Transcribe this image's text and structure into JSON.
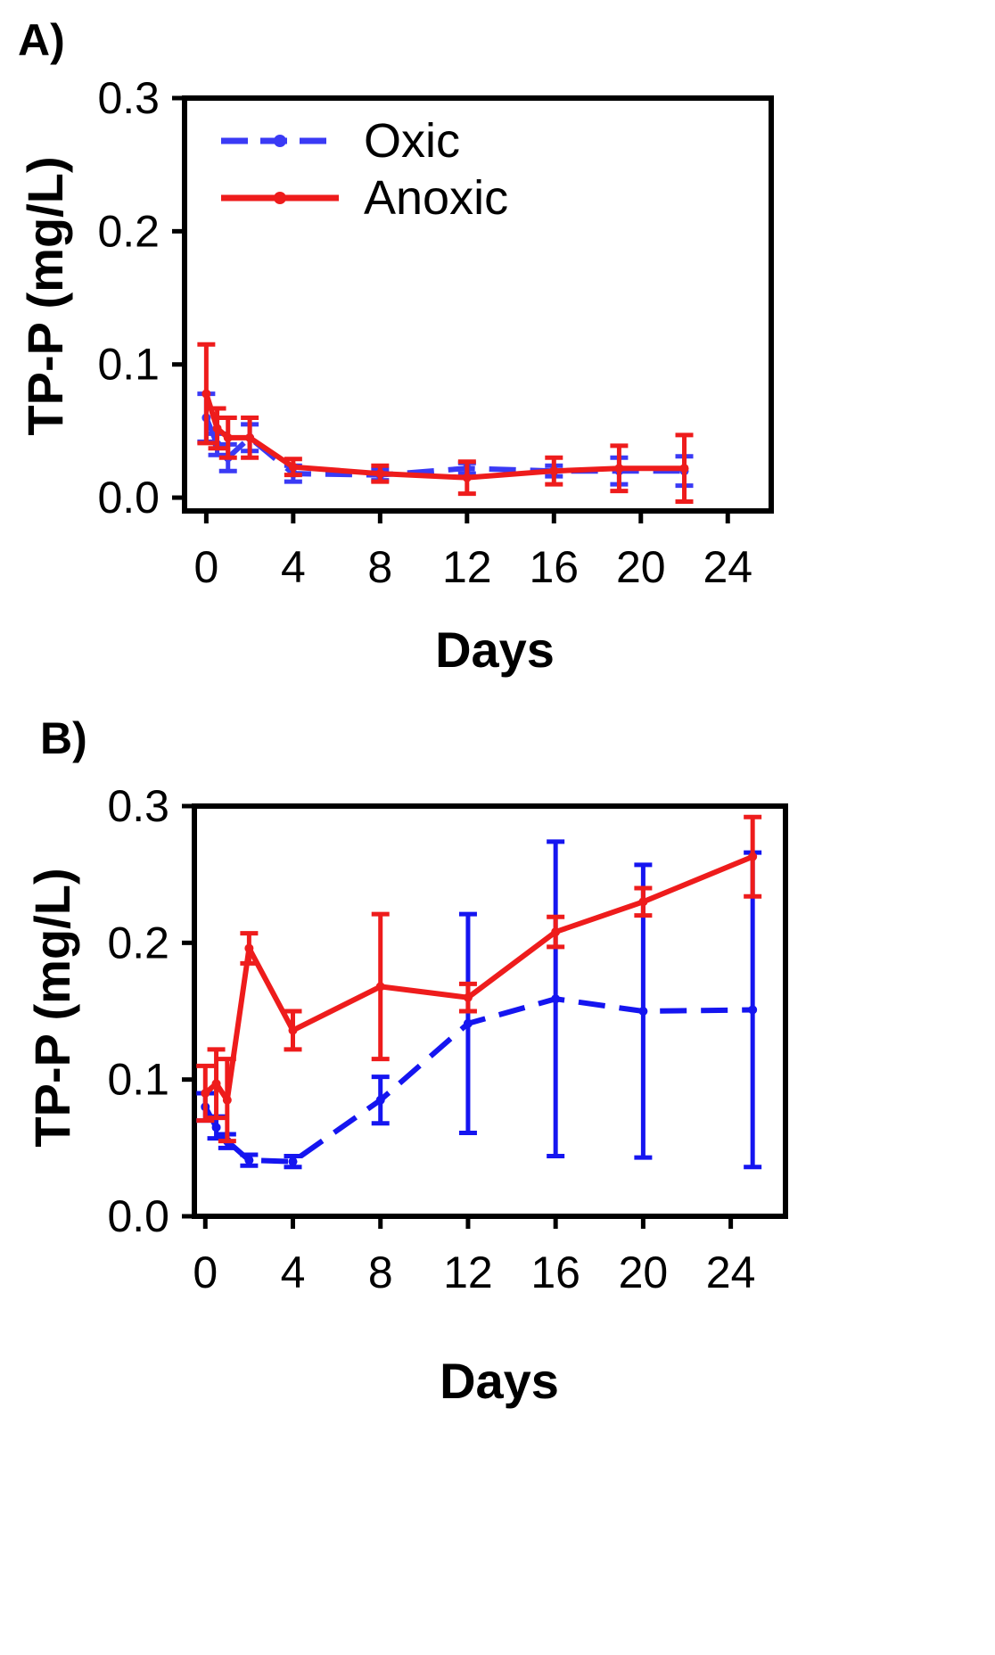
{
  "chart_data": [
    {
      "type": "line",
      "panel_label": "A)",
      "xlabel": "Days",
      "ylabel": "TP-P (mg/L)",
      "xlim": [
        -1,
        26
      ],
      "ylim": [
        -0.01,
        0.3
      ],
      "xticks": [
        0,
        4,
        8,
        12,
        16,
        20,
        24
      ],
      "xtick_labels": [
        "0",
        "4",
        "8",
        "12",
        "16",
        "20",
        "24"
      ],
      "yticks": [
        0.0,
        0.1,
        0.2,
        0.3
      ],
      "ytick_labels": [
        "0.0",
        "0.1",
        "0.2",
        "0.3"
      ],
      "legend": {
        "position": "top-left",
        "entries": [
          "Oxic",
          "Anoxic"
        ]
      },
      "series": [
        {
          "name": "Oxic",
          "color": "#3a3af5",
          "dash": "dashed",
          "x": [
            0,
            0.5,
            1,
            2,
            4,
            8,
            12,
            16,
            19,
            22
          ],
          "y": [
            0.06,
            0.04,
            0.03,
            0.045,
            0.018,
            0.017,
            0.022,
            0.02,
            0.02,
            0.02
          ],
          "err": [
            0.018,
            0.008,
            0.01,
            0.01,
            0.006,
            0.004,
            0.004,
            0.004,
            0.01,
            0.011
          ]
        },
        {
          "name": "Anoxic",
          "color": "#ee1c1c",
          "dash": "solid",
          "x": [
            0,
            0.5,
            1,
            2,
            4,
            8,
            12,
            16,
            19,
            22
          ],
          "y": [
            0.078,
            0.052,
            0.045,
            0.045,
            0.023,
            0.018,
            0.015,
            0.02,
            0.022,
            0.022
          ],
          "err": [
            0.037,
            0.015,
            0.015,
            0.015,
            0.006,
            0.006,
            0.012,
            0.01,
            0.017,
            0.025
          ]
        }
      ]
    },
    {
      "type": "line",
      "panel_label": "B)",
      "xlabel": "Days",
      "ylabel": "TP-P (mg/L)",
      "xlim": [
        -0.5,
        26.5
      ],
      "ylim": [
        0.0,
        0.3
      ],
      "xticks": [
        0,
        4,
        8,
        12,
        16,
        20,
        24
      ],
      "xtick_labels": [
        "0",
        "4",
        "8",
        "12",
        "16",
        "20",
        "24"
      ],
      "yticks": [
        0.0,
        0.1,
        0.2,
        0.3
      ],
      "ytick_labels": [
        "0.0",
        "0.1",
        "0.2",
        "0.3"
      ],
      "series": [
        {
          "name": "Oxic",
          "color": "#1515f0",
          "dash": "dashed",
          "x": [
            0,
            0.5,
            1,
            2,
            4,
            8,
            12,
            16,
            20,
            25
          ],
          "y": [
            0.08,
            0.065,
            0.055,
            0.041,
            0.04,
            0.085,
            0.141,
            0.159,
            0.15,
            0.151
          ],
          "err": [
            0.01,
            0.008,
            0.005,
            0.004,
            0.004,
            0.017,
            0.08,
            0.115,
            0.107,
            0.115
          ]
        },
        {
          "name": "Anoxic",
          "color": "#ee1c1c",
          "dash": "solid",
          "x": [
            0,
            0.5,
            1,
            2,
            4,
            8,
            12,
            16,
            20,
            25
          ],
          "y": [
            0.09,
            0.097,
            0.085,
            0.196,
            0.136,
            0.168,
            0.16,
            0.208,
            0.23,
            0.263
          ],
          "err": [
            0.02,
            0.025,
            0.03,
            0.011,
            0.014,
            0.053,
            0.01,
            0.011,
            0.01,
            0.029
          ]
        }
      ]
    }
  ]
}
